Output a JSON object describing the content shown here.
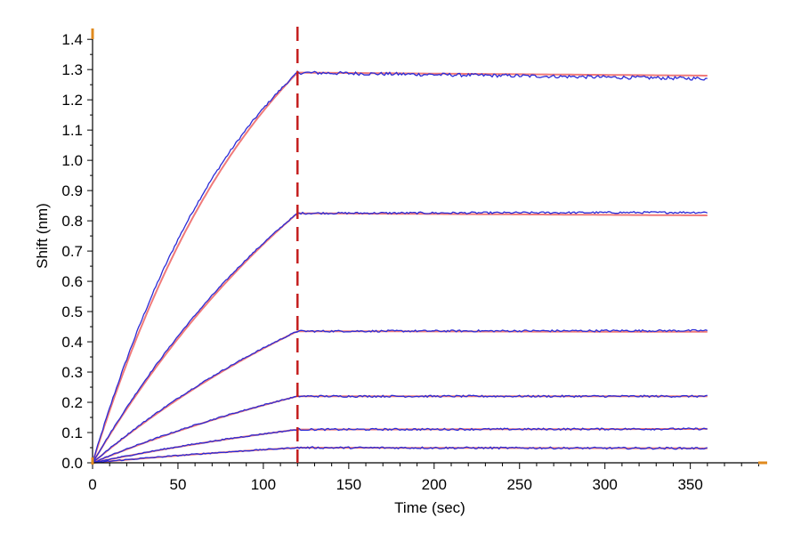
{
  "chart_data": {
    "type": "line",
    "xlabel": "Time (sec)",
    "ylabel": "Shift (nm)",
    "xlim": [
      0,
      395
    ],
    "ylim": [
      0,
      1.43
    ],
    "x_ticks": [
      0,
      50,
      100,
      150,
      200,
      250,
      300,
      350
    ],
    "x_tick_labels": [
      "0",
      "50",
      "100",
      "150",
      "200",
      "250",
      "300",
      "350"
    ],
    "y_ticks": [
      0.0,
      0.1,
      0.2,
      0.3,
      0.4,
      0.5,
      0.6,
      0.7,
      0.8,
      0.9,
      1.0,
      1.1,
      1.2,
      1.3,
      1.4
    ],
    "y_tick_labels": [
      "0.0",
      "0.1",
      "0.2",
      "0.3",
      "0.4",
      "0.5",
      "0.6",
      "0.7",
      "0.8",
      "0.9",
      "1.0",
      "1.1",
      "1.2",
      "1.3",
      "1.4"
    ],
    "grid": false,
    "association_end_time": 120,
    "end_time": 360,
    "curves": [
      {
        "plateau": 1.29,
        "end": 1.27,
        "fit_end": 1.28,
        "kobs": 0.0095
      },
      {
        "plateau": 0.825,
        "end": 0.828,
        "fit_end": 0.818,
        "kobs": 0.0055
      },
      {
        "plateau": 0.435,
        "end": 0.437,
        "fit_end": 0.433,
        "kobs": 0.0045
      },
      {
        "plateau": 0.22,
        "end": 0.22,
        "fit_end": 0.22,
        "kobs": 0.004
      },
      {
        "plateau": 0.11,
        "end": 0.112,
        "fit_end": 0.112,
        "kobs": 0.004
      },
      {
        "plateau": 0.05,
        "end": 0.048,
        "fit_end": 0.048,
        "kobs": 0.004
      }
    ],
    "colors": {
      "data": "#2b2bd6",
      "fit": "#f07a7a",
      "marker": "#c41e1e",
      "axis_accent": "#e08a1e",
      "axis": "#000000"
    }
  }
}
